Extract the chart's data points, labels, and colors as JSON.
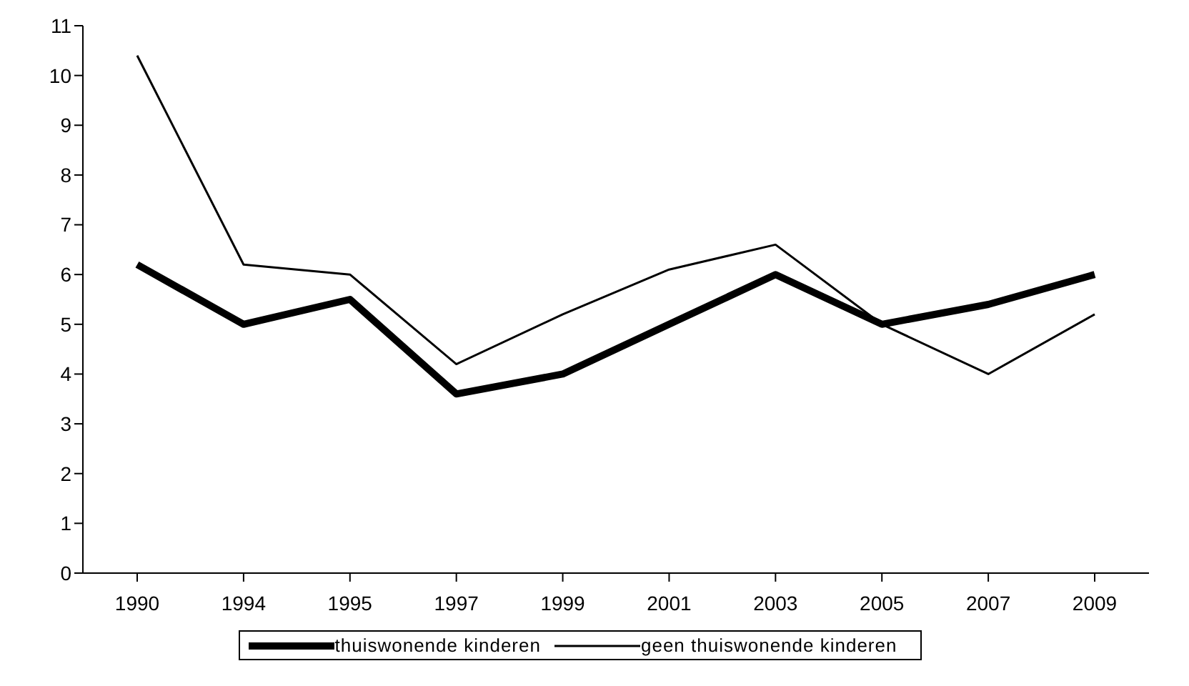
{
  "chart_data": {
    "type": "line",
    "categories": [
      "1990",
      "1994",
      "1995",
      "1997",
      "1999",
      "2001",
      "2003",
      "2005",
      "2007",
      "2009"
    ],
    "series": [
      {
        "name": "thuiswonende kinderen",
        "color": "#000000",
        "values": [
          6.2,
          5.0,
          5.5,
          3.6,
          4.0,
          5.0,
          6.0,
          5.0,
          5.4,
          6.0
        ]
      },
      {
        "name": "geen thuiswonende kinderen",
        "color": "#000000",
        "values": [
          10.4,
          6.2,
          6.0,
          4.2,
          5.2,
          6.1,
          6.6,
          5.0,
          4.0,
          5.2
        ]
      }
    ],
    "ylim": [
      0,
      11
    ],
    "yticks": [
      0,
      1,
      2,
      3,
      4,
      5,
      6,
      7,
      8,
      9,
      10,
      11
    ],
    "grid": false,
    "legend": "bottom",
    "marker": "none",
    "line_style": "solid"
  }
}
